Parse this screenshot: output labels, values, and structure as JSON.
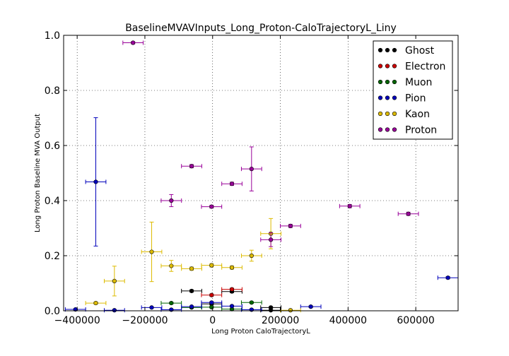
{
  "chart_data": {
    "type": "scatter",
    "title": "BaselineMVAVInputs_Long_Proton-CaloTrajectoryL_Liny",
    "xlabel": "Long Proton CaloTrajectoryL",
    "ylabel": "Long Proton Baseline MVA Output",
    "xlim": [
      -440000,
      725000
    ],
    "ylim": [
      0,
      1.0
    ],
    "xticks": [
      -400000,
      -200000,
      0,
      200000,
      400000,
      600000
    ],
    "xtick_labels": [
      "−400000",
      "−200000",
      "0",
      "200000",
      "400000",
      "600000"
    ],
    "yticks": [
      0.0,
      0.2,
      0.4,
      0.6,
      0.8,
      1.0
    ],
    "ytick_labels": [
      "0.0",
      "0.2",
      "0.4",
      "0.6",
      "0.8",
      "1.0"
    ],
    "grid": true,
    "legend_position": "top-right",
    "series": [
      {
        "name": "Ghost",
        "color": "#000000",
        "points": [
          {
            "x": -62000,
            "y": 0.072,
            "xerr": 30000,
            "yerr": 0.004
          },
          {
            "x": -3000,
            "y": 0.025,
            "xerr": 30000,
            "yerr": 0.004
          },
          {
            "x": 57000,
            "y": 0.07,
            "xerr": 30000,
            "yerr": 0.004
          },
          {
            "x": 172000,
            "y": 0.012,
            "xerr": 30000,
            "yerr": 0.003
          },
          {
            "x": 172000,
            "y": 0.002,
            "xerr": 30000,
            "yerr": 0.002
          }
        ]
      },
      {
        "name": "Electron",
        "color": "#cc0000",
        "points": [
          {
            "x": -3000,
            "y": 0.057,
            "xerr": 30000,
            "yerr": 0.004
          },
          {
            "x": 57000,
            "y": 0.078,
            "xerr": 30000,
            "yerr": 0.004
          }
        ]
      },
      {
        "name": "Muon",
        "color": "#006600",
        "points": [
          {
            "x": -122000,
            "y": 0.028,
            "xerr": 30000,
            "yerr": 0.003
          },
          {
            "x": -62000,
            "y": 0.012,
            "xerr": 30000,
            "yerr": 0.003
          },
          {
            "x": -3000,
            "y": 0.013,
            "xerr": 30000,
            "yerr": 0.003
          },
          {
            "x": 57000,
            "y": 0.006,
            "xerr": 30000,
            "yerr": 0.002
          },
          {
            "x": 115000,
            "y": 0.03,
            "xerr": 30000,
            "yerr": 0.003
          }
        ]
      },
      {
        "name": "Pion",
        "color": "#0000bb",
        "points": [
          {
            "x": -405000,
            "y": 0.005,
            "xerr": 30000,
            "yerr": 0.002
          },
          {
            "x": -345000,
            "y": 0.468,
            "xerr": 30000,
            "yerr": 0.233
          },
          {
            "x": -290000,
            "y": 0.002,
            "xerr": 30000,
            "yerr": 0.002
          },
          {
            "x": -180000,
            "y": 0.012,
            "xerr": 30000,
            "yerr": 0.002
          },
          {
            "x": -122000,
            "y": 0.004,
            "xerr": 30000,
            "yerr": 0.002
          },
          {
            "x": -62000,
            "y": 0.015,
            "xerr": 30000,
            "yerr": 0.002
          },
          {
            "x": -3000,
            "y": 0.03,
            "xerr": 30000,
            "yerr": 0.003
          },
          {
            "x": 57000,
            "y": 0.017,
            "xerr": 30000,
            "yerr": 0.002
          },
          {
            "x": 115000,
            "y": 0.004,
            "xerr": 30000,
            "yerr": 0.002
          },
          {
            "x": 290000,
            "y": 0.015,
            "xerr": 30000,
            "yerr": 0.003
          },
          {
            "x": 695000,
            "y": 0.12,
            "xerr": 30000,
            "yerr": 0.004
          }
        ]
      },
      {
        "name": "Kaon",
        "color": "#ddbb00",
        "points": [
          {
            "x": -345000,
            "y": 0.028,
            "xerr": 30000,
            "yerr": 0.004
          },
          {
            "x": -290000,
            "y": 0.108,
            "xerr": 30000,
            "yerr": 0.054
          },
          {
            "x": -180000,
            "y": 0.214,
            "xerr": 30000,
            "yerr": 0.108
          },
          {
            "x": -122000,
            "y": 0.163,
            "xerr": 30000,
            "yerr": 0.02
          },
          {
            "x": -62000,
            "y": 0.153,
            "xerr": 30000,
            "yerr": 0.006
          },
          {
            "x": -3000,
            "y": 0.165,
            "xerr": 30000,
            "yerr": 0.006
          },
          {
            "x": 57000,
            "y": 0.157,
            "xerr": 30000,
            "yerr": 0.006
          },
          {
            "x": 115000,
            "y": 0.2,
            "xerr": 30000,
            "yerr": 0.02
          },
          {
            "x": 172000,
            "y": 0.28,
            "xerr": 30000,
            "yerr": 0.055
          },
          {
            "x": 230000,
            "y": 0.002,
            "xerr": 30000,
            "yerr": 0.002
          }
        ]
      },
      {
        "name": "Proton",
        "color": "#990099",
        "points": [
          {
            "x": -235000,
            "y": 0.973,
            "xerr": 30000,
            "yerr": 0.004
          },
          {
            "x": -122000,
            "y": 0.4,
            "xerr": 30000,
            "yerr": 0.022
          },
          {
            "x": -62000,
            "y": 0.525,
            "xerr": 30000,
            "yerr": 0.006
          },
          {
            "x": -3000,
            "y": 0.378,
            "xerr": 30000,
            "yerr": 0.005
          },
          {
            "x": 57000,
            "y": 0.461,
            "xerr": 30000,
            "yerr": 0.006
          },
          {
            "x": 115000,
            "y": 0.515,
            "xerr": 30000,
            "yerr": 0.08
          },
          {
            "x": 172000,
            "y": 0.258,
            "xerr": 30000,
            "yerr": 0.025
          },
          {
            "x": 230000,
            "y": 0.308,
            "xerr": 30000,
            "yerr": 0.006
          },
          {
            "x": 405000,
            "y": 0.38,
            "xerr": 30000,
            "yerr": 0.006
          },
          {
            "x": 578000,
            "y": 0.352,
            "xerr": 30000,
            "yerr": 0.006
          }
        ]
      }
    ]
  }
}
